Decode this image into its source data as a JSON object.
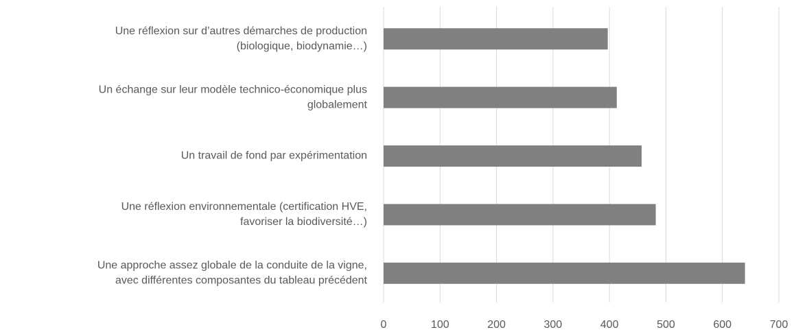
{
  "chart_data": {
    "type": "bar",
    "orientation": "horizontal",
    "categories": [
      [
        "Une réflexion sur d’autres démarches de production",
        "(biologique, biodynamie…)"
      ],
      [
        "Un échange sur leur modèle technico-économique plus",
        "globalement"
      ],
      [
        "Un travail de fond par expérimentation"
      ],
      [
        "Une réflexion environnementale (certification HVE,",
        "favoriser la biodiversité…)"
      ],
      [
        "Une approche assez globale de la conduite de la vigne,",
        "avec différentes composantes du tableau précédent"
      ]
    ],
    "values": [
      397,
      413,
      457,
      482,
      640
    ],
    "color": "#808080",
    "xlim": [
      0,
      700
    ],
    "xticks": [
      0,
      100,
      200,
      300,
      400,
      500,
      600,
      700
    ],
    "grid": true
  }
}
